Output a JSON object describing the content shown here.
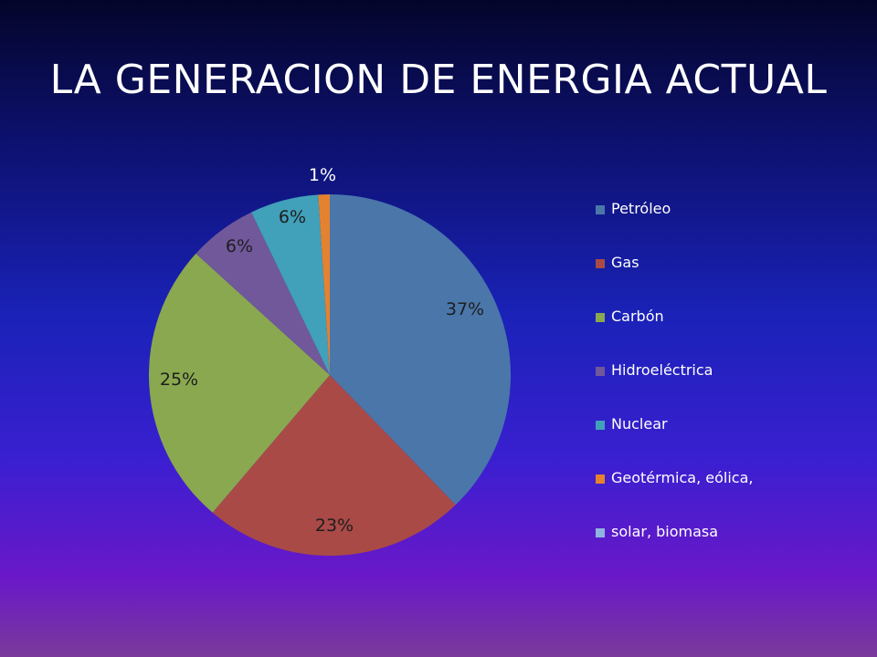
{
  "title": "LA GENERACION DE ENERGIA ACTUAL",
  "chart_data": {
    "type": "pie",
    "categories": [
      "Petróleo",
      "Gas",
      "Carbón",
      "Hidroeléctrica",
      "Nuclear",
      "Geotérmica, eólica,",
      "solar, biomasa"
    ],
    "values": [
      37,
      23,
      25,
      6,
      6,
      1,
      0
    ],
    "data_labels": [
      "37%",
      "23%",
      "25%",
      "6%",
      "6%",
      "1%",
      ""
    ],
    "colors": [
      "#4a76aa",
      "#a94a47",
      "#8aa84f",
      "#71589a",
      "#41a0ba",
      "#e5822f",
      "#8fb2e0"
    ],
    "start_angle": "12 o'clock",
    "direction": "clockwise",
    "legend_position": "right"
  }
}
